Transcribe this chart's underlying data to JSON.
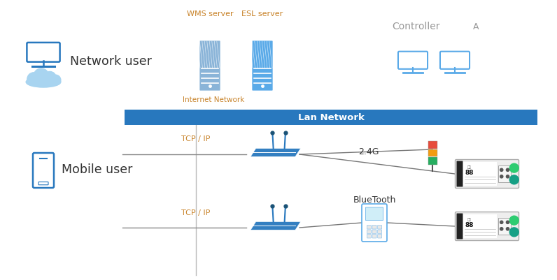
{
  "bg_color": "#ffffff",
  "lan_bar_color": "#2878be",
  "lan_bar_text": "Lan Network",
  "lan_bar_text_color": "#ffffff",
  "internet_network_text": "Internet Network",
  "internet_network_color": "#c8832a",
  "wms_server_text": "WMS server",
  "esl_server_text": "ESL server",
  "server_text_color": "#c8832a",
  "network_user_text": "Network user",
  "mobile_user_text": "Mobile user",
  "controller_text": "Controller",
  "controller_a_text": "A",
  "tcp_ip_text": "TCP / IP",
  "tcp_ip_color": "#c8832a",
  "dot_2g_text": "2.4G",
  "bluetooth_text": "BlueTooth",
  "monitor_color": "#2878be",
  "cloud_color": "#a8d4f0",
  "phone_color": "#2878be",
  "server_wms_color": "#8ab4d8",
  "server_esl_color": "#5aaae8",
  "router_color": "#2878be",
  "label_bg": "#e8e8e8",
  "label_border": "#aaaaaa",
  "green_btn": "#2ecc71",
  "teal_btn": "#16a085",
  "traffic_red": "#e74c3c",
  "traffic_orange": "#f39c12",
  "traffic_green": "#27ae60",
  "controller_monitor_color": "#5aaae8",
  "text_dark": "#333333",
  "text_gray": "#999999",
  "line_color": "#888888",
  "line_thin": "#aaaaaa"
}
